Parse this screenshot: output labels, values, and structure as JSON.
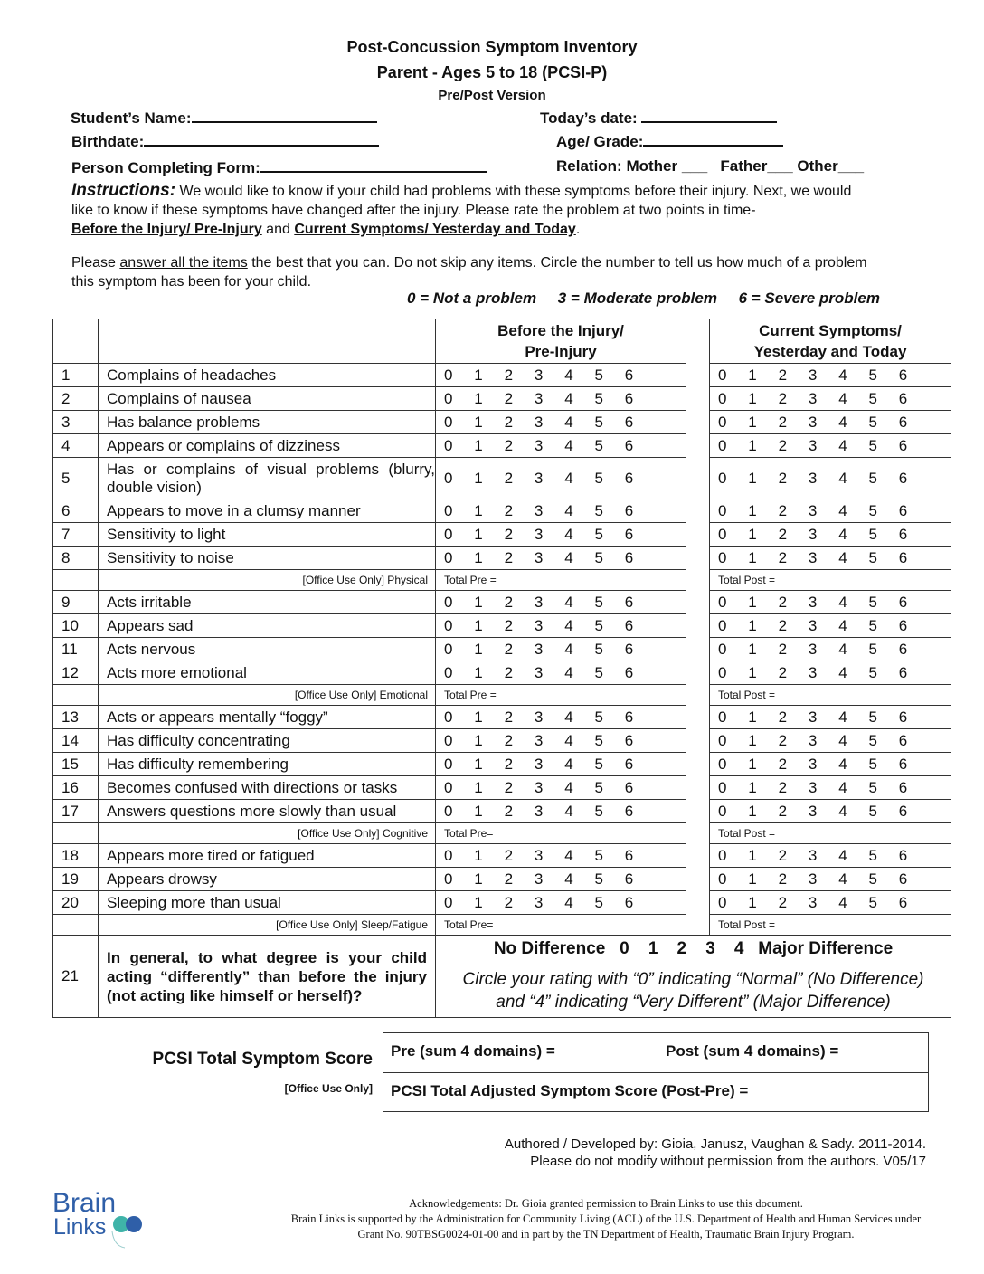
{
  "header": {
    "title": "Post-Concussion Symptom Inventory",
    "subtitle": "Parent - Ages 5 to 18 (PCSI-P)",
    "version": "Pre/Post Version"
  },
  "fields": {
    "student_name": "Student’s Name:",
    "todays_date": "Today’s date:",
    "birthdate": "Birthdate:",
    "age_grade": "Age/ Grade:",
    "person_completing": "Person Completing Form:",
    "relation": "Relation: Mother ___   Father___ Other___"
  },
  "instructions": {
    "label": "Instructions:",
    "text1": " We would like to know if your child had problems with these symptoms before their injury. Next, we would like to know if these symptoms have changed after the injury. Please rate the problem at two points in time-",
    "before": "Before the Injury/ Pre-Injury",
    "and": " and ",
    "current": "Current Symptoms/ Yesterday and Today",
    "end": ".",
    "p2a": "Please ",
    "p2u": "answer all the items",
    "p2b": " the best that you can. Do not skip any items. Circle the number to tell us how much of a problem this symptom has been for your child."
  },
  "scale_legend": {
    "a": "0 = Not a problem",
    "b": "3 = Moderate problem",
    "c": "6 = Severe problem"
  },
  "table": {
    "pre_header_1": "Before the Injury/",
    "pre_header_2": "Pre-Injury",
    "post_header_1": "Current Symptoms/",
    "post_header_2": "Yesterday  and Today",
    "scale": [
      "0",
      "1",
      "2",
      "3",
      "4",
      "5",
      "6"
    ],
    "rows": [
      {
        "n": "1",
        "t": "Complains of headaches"
      },
      {
        "n": "2",
        "t": "Complains of nausea"
      },
      {
        "n": "3",
        "t": "Has balance problems"
      },
      {
        "n": "4",
        "t": "Appears or complains of dizziness"
      },
      {
        "n": "5",
        "t": "Has or complains of visual problems (blurry, double vision)",
        "tall": true
      },
      {
        "n": "6",
        "t": "Appears to move in a clumsy manner"
      },
      {
        "n": "7",
        "t": "Sensitivity to light"
      },
      {
        "n": "8",
        "t": "Sensitivity to noise"
      },
      {
        "office": "[Office Use Only] Physical",
        "pre": "Total Pre =",
        "post": "Total Post ="
      },
      {
        "n": "9",
        "t": "Acts irritable"
      },
      {
        "n": "10",
        "t": "Appears sad"
      },
      {
        "n": "11",
        "t": "Acts nervous"
      },
      {
        "n": "12",
        "t": "Acts more emotional"
      },
      {
        "office": "[Office Use Only] Emotional",
        "pre": "Total Pre =",
        "post": "Total Post ="
      },
      {
        "n": "13",
        "t": "Acts or appears mentally “foggy”"
      },
      {
        "n": "14",
        "t": "Has difficulty concentrating"
      },
      {
        "n": "15",
        "t": "Has difficulty remembering"
      },
      {
        "n": "16",
        "t": "Becomes confused with directions or tasks"
      },
      {
        "n": "17",
        "t": "Answers questions more slowly than usual"
      },
      {
        "office": "[Office Use Only] Cognitive",
        "pre": "Total Pre=",
        "post": "Total Post ="
      },
      {
        "n": "18",
        "t": "Appears more tired or fatigued"
      },
      {
        "n": "19",
        "t": "Appears drowsy"
      },
      {
        "n": "20",
        "t": "Sleeping more than usual"
      },
      {
        "office": "[Office Use Only] Sleep/Fatigue",
        "pre": "Total Pre=",
        "post": "Total Post ="
      }
    ],
    "q21": {
      "n": "21",
      "t": "In general, to what degree is your child acting “differently” than before the injury (not acting like himself or herself)?",
      "scale": "No Difference   0    1    2    3    4   Major Difference",
      "note": "Circle your rating with “0” indicating “Normal” (No Difference) and “4” indicating “Very Different” (Major Difference)"
    }
  },
  "totals": {
    "label": "PCSI Total Symptom Score",
    "office": "[Office Use Only]",
    "pre": "Pre (sum 4 domains) =",
    "post": "Post (sum 4 domains) =",
    "adjusted": "PCSI Total Adjusted Symptom Score (Post-Pre) ="
  },
  "footer": {
    "authors": "Authored / Developed by: Gioia, Janusz, Vaughan & Sady. 2011-2014.",
    "permission": "Please do not modify without permission from the authors. V05/17",
    "ack1": "Acknowledgements: Dr. Gioia granted permission to Brain Links to use this document.",
    "ack2": "Brain Links is supported by the Administration for Community Living (ACL) of the U.S. Department of Health and Human Services under",
    "ack3": "Grant No. 90TBSG0024-01-00 and in part by the TN Department of Health, Traumatic Brain Injury Program.",
    "logo": "Brain Links",
    "logo_colors": {
      "text": "#2f5fa8",
      "teal": "#3fb3a8",
      "blue": "#2f5fa8"
    }
  }
}
